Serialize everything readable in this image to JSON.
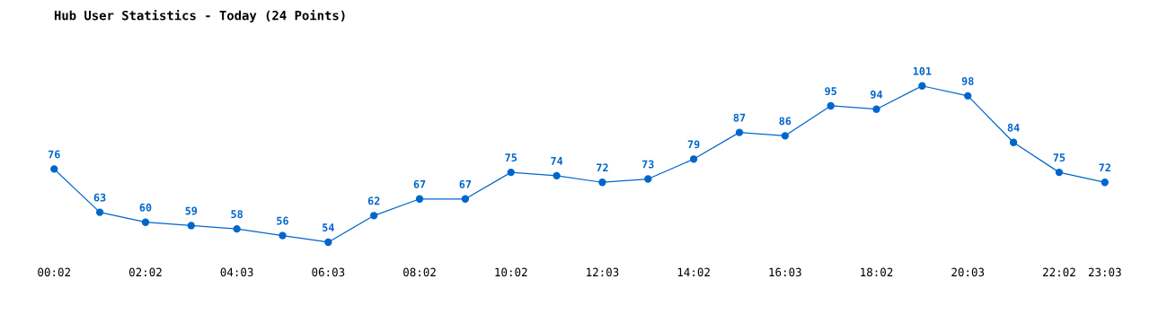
{
  "chart_data": {
    "type": "line",
    "title": "Hub User Statistics - Today (24 Points)",
    "categories": [
      "00:02",
      null,
      "02:02",
      null,
      "04:03",
      null,
      "06:03",
      null,
      "08:02",
      null,
      "10:02",
      null,
      "12:03",
      null,
      "14:02",
      null,
      "16:03",
      null,
      "18:02",
      null,
      "20:03",
      null,
      "22:02",
      "23:03"
    ],
    "series": [
      {
        "color": "#0066cc",
        "values": [
          76,
          63,
          60,
          59,
          58,
          56,
          54,
          62,
          67,
          67,
          75,
          74,
          72,
          73,
          79,
          87,
          86,
          95,
          94,
          101,
          98,
          84,
          75,
          72
        ]
      }
    ],
    "data_labels": true,
    "marker": "circle",
    "line_style": "solid",
    "grid": false,
    "legend": false
  }
}
